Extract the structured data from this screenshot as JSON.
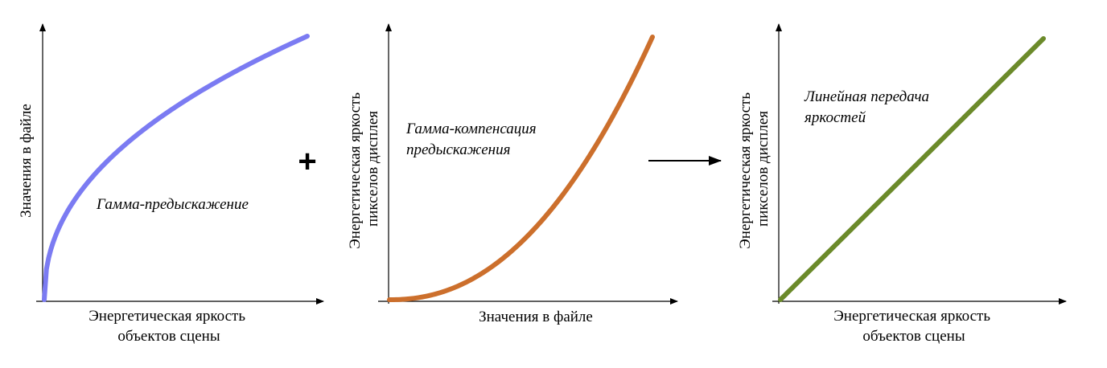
{
  "panels": [
    {
      "x_label_lines": [
        "Энергетическая яркость",
        "объектов сцены"
      ],
      "y_label_lines": [
        "Значения в файле"
      ],
      "annotation_lines": [
        "Гамма-предыскажение"
      ],
      "curve_color": "#7b7bf2",
      "curve_shape": "gamma-encode"
    },
    {
      "x_label_lines": [
        "Значения в файле"
      ],
      "y_label_lines": [
        "Энергетическая яркость",
        "пикселов дисплея"
      ],
      "annotation_lines": [
        "Гамма-компенсация",
        "предыскажения"
      ],
      "curve_color": "#cc6f2c",
      "curve_shape": "gamma-decode"
    },
    {
      "x_label_lines": [
        "Энергетическая яркость",
        "объектов сцены"
      ],
      "y_label_lines": [
        "Энергетическая яркость",
        "пикселов дисплея"
      ],
      "annotation_lines": [
        "Линейная передача",
        "яркостей"
      ],
      "curve_color": "#6b8a2a",
      "curve_shape": "linear"
    }
  ],
  "operators": {
    "plus": "+",
    "arrow": "→"
  }
}
